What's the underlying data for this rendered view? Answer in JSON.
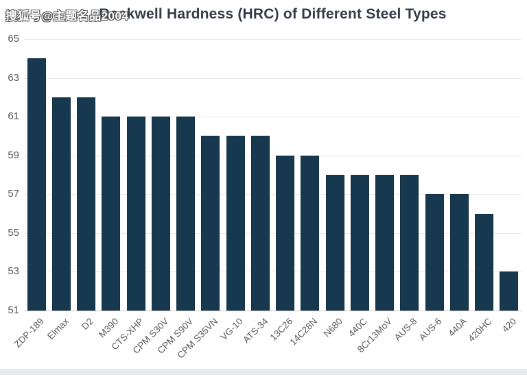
{
  "watermark": "搜狐号@主题名品2004",
  "chart_data": {
    "type": "bar",
    "title": "Rockwell Hardness (HRC) of Different Steel Types",
    "categories": [
      "ZDP-189",
      "Elmax",
      "D2",
      "M390",
      "CTS-XHP",
      "CPM S30V",
      "CPM S90V",
      "CPM S35VN",
      "VG-10",
      "ATS-34",
      "13C26",
      "14C28N",
      "N680",
      "440C",
      "8Cr13MoV",
      "AUS-8",
      "AUS-6",
      "440A",
      "420HC",
      "420"
    ],
    "values": [
      64,
      62,
      62,
      61,
      61,
      61,
      61,
      60,
      60,
      60,
      59,
      59,
      58,
      58,
      58,
      58,
      57,
      57,
      56,
      53
    ],
    "xlabel": "",
    "ylabel": "",
    "ylim": [
      51,
      65
    ],
    "yticks": [
      51,
      53,
      55,
      57,
      59,
      61,
      63,
      65
    ],
    "grid": true,
    "legend": false,
    "colors": {
      "bar": "#17394f",
      "grid": "#e8e8e8",
      "axis": "#c8c8c8",
      "tick": "#595959",
      "title": "#333b46",
      "strip": "#e7e9eb",
      "watermark_fill": "#ffffff",
      "watermark_outline": "#555555",
      "background": "#ffffff"
    }
  }
}
